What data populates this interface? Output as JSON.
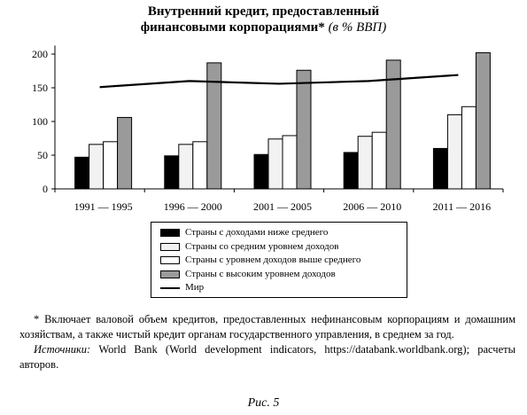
{
  "title_line1": "Внутренний кредит, предоставленный",
  "title_line2": "финансовыми корпорациями*",
  "title_unit": "(в % ВВП)",
  "chart_data": {
    "type": "bar",
    "categories": [
      "1991 — 1995",
      "1996 — 2000",
      "2001 — 2005",
      "2006 — 2010",
      "2011 — 2016"
    ],
    "series": [
      {
        "name": "Страны с доходами ниже среднего",
        "values": [
          47,
          49,
          51,
          54,
          60
        ],
        "color": "#000000"
      },
      {
        "name": "Страны со средним уровнем доходов",
        "values": [
          66,
          66,
          74,
          78,
          110
        ],
        "color": "#f2f2f2"
      },
      {
        "name": "Страны с уровнем доходов выше среднего",
        "values": [
          70,
          70,
          79,
          84,
          122
        ],
        "color": "#ffffff"
      },
      {
        "name": "Страны с высоким уровнем доходов",
        "values": [
          106,
          187,
          176,
          191,
          202
        ],
        "color": "#9a9a9a"
      }
    ],
    "line_series": {
      "name": "Мир",
      "values": [
        151,
        160,
        156,
        160,
        169
      ],
      "color": "#000000"
    },
    "yticks": [
      0,
      50,
      100,
      150,
      200
    ],
    "ylim": [
      0,
      210
    ],
    "grid": false,
    "legend_position": "bottom"
  },
  "footnote": "* Включает валовой объем кредитов, предоставленных нефинансовым корпорациям и домашним хозяйствам, а также чистый кредит органам государственного управления, в среднем за год.",
  "sources_label": "Источники:",
  "sources_text": " World Bank (World development indicators, https://databank.worldbank.org); расчеты авторов.",
  "figure_caption": "Рис. 5"
}
